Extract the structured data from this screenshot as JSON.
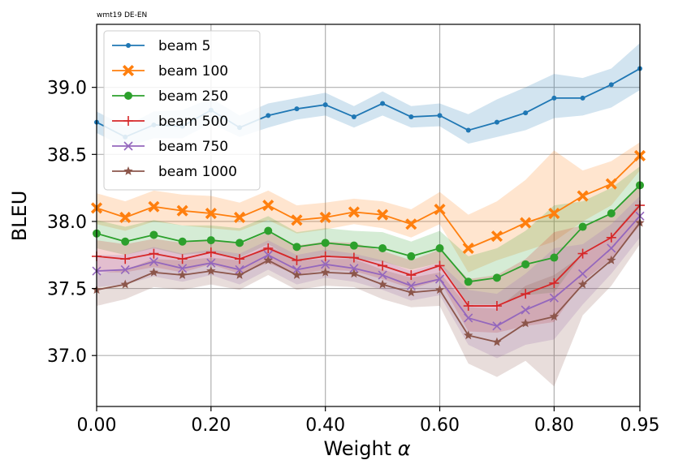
{
  "chart_data": {
    "type": "line",
    "title": "wmt19 DE-EN",
    "xlabel": "Weight",
    "xlabel_symbol": "α",
    "ylabel": "BLEU",
    "x": [
      0.0,
      0.05,
      0.1,
      0.15,
      0.2,
      0.25,
      0.3,
      0.35,
      0.4,
      0.45,
      0.5,
      0.55,
      0.6,
      0.65,
      0.7,
      0.75,
      0.8,
      0.85,
      0.9,
      0.95
    ],
    "xlim": [
      0.0,
      0.95
    ],
    "ylim": [
      36.62,
      39.47
    ],
    "xticks": [
      0.0,
      0.2,
      0.4,
      0.6,
      0.8,
      0.95
    ],
    "xtick_labels": [
      "0.00",
      "0.20",
      "0.40",
      "0.60",
      "0.80",
      "0.95"
    ],
    "yticks": [
      37.0,
      37.5,
      38.0,
      38.5,
      39.0
    ],
    "ytick_labels": [
      "37.0",
      "37.5",
      "38.0",
      "38.5",
      "39.0"
    ],
    "grid": true,
    "legend_position": "top-left",
    "series": [
      {
        "name": "beam 5",
        "color": "#1f77b4",
        "marker": "dot",
        "values": [
          38.74,
          38.63,
          38.72,
          38.71,
          38.83,
          38.7,
          38.79,
          38.84,
          38.87,
          38.78,
          38.88,
          38.78,
          38.79,
          38.68,
          38.74,
          38.81,
          38.92,
          38.92,
          39.02,
          39.14
        ],
        "band_lower": [
          38.66,
          38.55,
          38.62,
          38.62,
          38.73,
          38.63,
          38.7,
          38.76,
          38.79,
          38.7,
          38.79,
          38.7,
          38.71,
          38.58,
          38.63,
          38.68,
          38.77,
          38.79,
          38.85,
          38.98
        ],
        "band_upper": [
          38.82,
          38.71,
          38.82,
          38.83,
          38.92,
          38.79,
          38.88,
          38.92,
          38.96,
          38.86,
          38.97,
          38.86,
          38.88,
          38.8,
          38.91,
          39.0,
          39.1,
          39.07,
          39.14,
          39.33
        ]
      },
      {
        "name": "beam 100",
        "color": "#ff7f0e",
        "marker": "x-filled",
        "values": [
          38.1,
          38.03,
          38.11,
          38.08,
          38.06,
          38.03,
          38.12,
          38.01,
          38.03,
          38.07,
          38.05,
          37.98,
          38.09,
          37.8,
          37.89,
          37.99,
          38.06,
          38.19,
          38.28,
          38.49
        ],
        "band_lower": [
          37.98,
          37.93,
          38.0,
          37.97,
          37.95,
          37.93,
          38.01,
          37.91,
          37.94,
          37.98,
          37.95,
          37.88,
          37.98,
          37.62,
          37.71,
          37.78,
          37.85,
          38.0,
          38.12,
          38.38
        ],
        "band_upper": [
          38.21,
          38.15,
          38.23,
          38.2,
          38.19,
          38.14,
          38.23,
          38.12,
          38.14,
          38.17,
          38.15,
          38.09,
          38.22,
          38.05,
          38.15,
          38.31,
          38.53,
          38.38,
          38.45,
          38.59
        ]
      },
      {
        "name": "beam 250",
        "color": "#2ca02c",
        "marker": "circle",
        "values": [
          37.91,
          37.85,
          37.9,
          37.85,
          37.86,
          37.84,
          37.93,
          37.81,
          37.84,
          37.82,
          37.8,
          37.74,
          37.8,
          37.55,
          37.58,
          37.68,
          37.73,
          37.96,
          38.06,
          38.27
        ],
        "band_lower": [
          37.8,
          37.75,
          37.8,
          37.75,
          37.77,
          37.73,
          37.83,
          37.7,
          37.74,
          37.72,
          37.7,
          37.64,
          37.69,
          37.38,
          37.38,
          37.45,
          37.47,
          37.76,
          37.89,
          38.12
        ],
        "band_upper": [
          38.01,
          37.96,
          38.01,
          37.97,
          37.97,
          37.95,
          38.04,
          37.92,
          37.95,
          37.93,
          37.92,
          37.85,
          37.93,
          37.74,
          37.8,
          37.93,
          38.12,
          38.15,
          38.25,
          38.41
        ]
      },
      {
        "name": "beam 500",
        "color": "#d62728",
        "marker": "plus",
        "values": [
          37.74,
          37.72,
          37.76,
          37.72,
          37.77,
          37.72,
          37.8,
          37.71,
          37.74,
          37.73,
          37.67,
          37.6,
          37.67,
          37.37,
          37.37,
          37.46,
          37.54,
          37.76,
          37.88,
          38.12
        ],
        "band_lower": [
          37.62,
          37.62,
          37.66,
          37.62,
          37.68,
          37.61,
          37.69,
          37.6,
          37.64,
          37.63,
          37.57,
          37.5,
          37.56,
          37.18,
          37.17,
          37.22,
          37.25,
          37.55,
          37.72,
          37.97
        ],
        "band_upper": [
          37.86,
          37.83,
          37.87,
          37.84,
          37.87,
          37.83,
          37.92,
          37.82,
          37.85,
          37.84,
          37.78,
          37.71,
          37.79,
          37.57,
          37.6,
          37.72,
          37.92,
          37.97,
          38.06,
          38.26
        ]
      },
      {
        "name": "beam 750",
        "color": "#9467bd",
        "marker": "x",
        "values": [
          37.63,
          37.64,
          37.7,
          37.65,
          37.69,
          37.64,
          37.75,
          37.64,
          37.68,
          37.65,
          37.6,
          37.52,
          37.57,
          37.28,
          37.22,
          37.34,
          37.43,
          37.61,
          37.8,
          38.04
        ],
        "band_lower": [
          37.51,
          37.53,
          37.59,
          37.55,
          37.6,
          37.53,
          37.64,
          37.53,
          37.58,
          37.55,
          37.49,
          37.41,
          37.45,
          37.08,
          36.98,
          37.08,
          37.12,
          37.38,
          37.61,
          37.88
        ],
        "band_upper": [
          37.75,
          37.75,
          37.81,
          37.76,
          37.79,
          37.76,
          37.86,
          37.75,
          37.79,
          37.76,
          37.71,
          37.63,
          37.69,
          37.49,
          37.46,
          37.61,
          37.8,
          37.83,
          37.98,
          38.19
        ]
      },
      {
        "name": "beam 1000",
        "color": "#8c564b",
        "marker": "star",
        "values": [
          37.49,
          37.53,
          37.62,
          37.6,
          37.63,
          37.6,
          37.71,
          37.6,
          37.62,
          37.61,
          37.53,
          37.47,
          37.49,
          37.15,
          37.1,
          37.24,
          37.29,
          37.53,
          37.71,
          37.99
        ],
        "band_lower": [
          37.37,
          37.42,
          37.51,
          37.49,
          37.53,
          37.49,
          37.6,
          37.49,
          37.52,
          37.51,
          37.42,
          37.36,
          37.37,
          36.94,
          36.84,
          36.96,
          36.77,
          37.3,
          37.52,
          37.83
        ],
        "band_upper": [
          37.61,
          37.64,
          37.72,
          37.71,
          37.73,
          37.71,
          37.82,
          37.71,
          37.72,
          37.72,
          37.64,
          37.58,
          37.62,
          37.36,
          37.35,
          37.52,
          37.6,
          37.75,
          37.89,
          38.14
        ]
      }
    ]
  }
}
